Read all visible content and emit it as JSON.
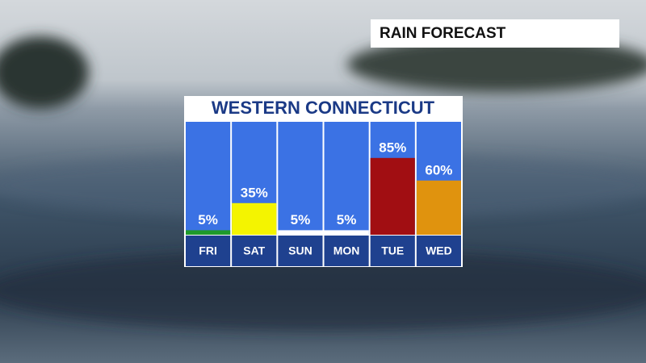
{
  "chart_data": {
    "type": "bar",
    "header": "RAIN FORECAST",
    "title": "WESTERN CONNECTICUT",
    "categories": [
      "FRI",
      "SAT",
      "SUN",
      "MON",
      "TUE",
      "WED"
    ],
    "values": [
      5,
      35,
      5,
      5,
      85,
      60
    ],
    "value_labels": [
      "5%",
      "35%",
      "5%",
      "5%",
      "85%",
      "60%"
    ],
    "colors": [
      "#1f9a2c",
      "#f4f400",
      "#ffffff",
      "#ffffff",
      "#a10e12",
      "#e0930e"
    ],
    "ylim": [
      0,
      100
    ]
  }
}
